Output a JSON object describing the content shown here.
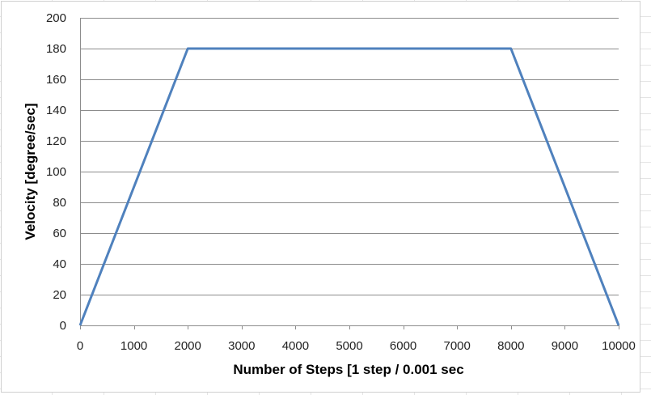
{
  "chart_data": {
    "type": "line",
    "title": "",
    "xlabel": "Number of Steps [1 step / 0.001 sec",
    "ylabel": "Velocity [degree/sec]",
    "xlim": [
      0,
      10000
    ],
    "ylim": [
      0,
      200
    ],
    "x_ticks": [
      0,
      1000,
      2000,
      3000,
      4000,
      5000,
      6000,
      7000,
      8000,
      9000,
      10000
    ],
    "y_ticks": [
      0,
      20,
      40,
      60,
      80,
      100,
      120,
      140,
      160,
      180,
      200
    ],
    "grid": true,
    "legend": "none",
    "series": [
      {
        "color": "#4f81bd",
        "x": [
          0,
          2000,
          8000,
          10000
        ],
        "y": [
          0,
          180,
          180,
          0
        ]
      }
    ]
  }
}
